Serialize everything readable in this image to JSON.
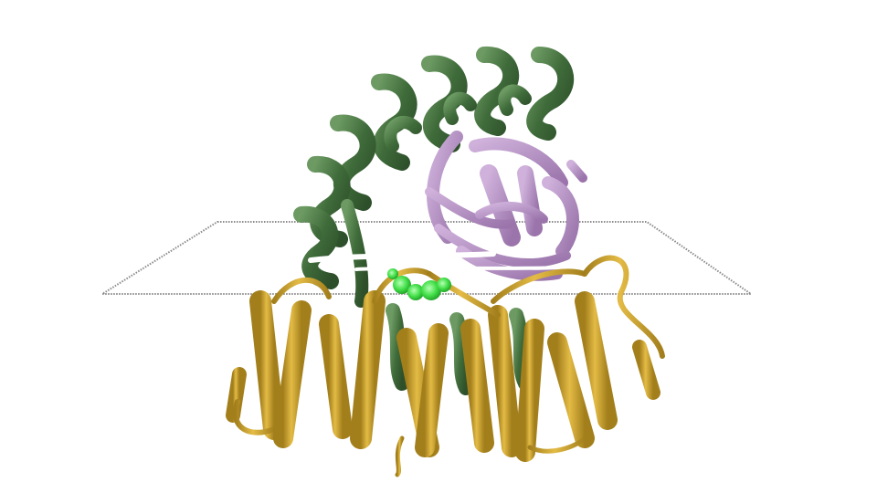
{
  "scene": {
    "subject": "protein-complex-ribbon-render",
    "colors": {
      "background": "#ffffff",
      "membrane_plane": "#8a8a8a",
      "green_domain": "#3f6b3a",
      "green_domain_light": "#5a8a52",
      "purple_domain": "#b590c4",
      "purple_domain_dark": "#9a74ab",
      "gold_domain": "#c9a02a",
      "gold_domain_dark": "#a37f1c",
      "ligand": "#44e04a",
      "ligand_light": "#8cf58d"
    }
  }
}
